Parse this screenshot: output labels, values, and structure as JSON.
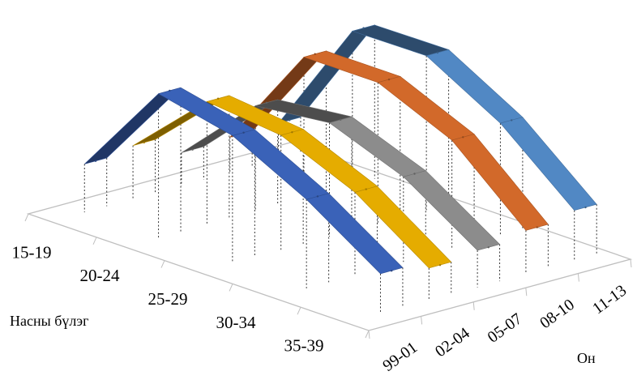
{
  "chart_data": {
    "type": "3d-line",
    "title": "",
    "xlabel": "Насны бүлэг",
    "ylabel": "Он",
    "categories": [
      "15-19",
      "20-24",
      "25-29",
      "30-34",
      "35-39"
    ],
    "depth_categories": [
      "99-01",
      "02-04",
      "05-07",
      "08-10",
      "11-13"
    ],
    "series": [
      {
        "label": "99-01",
        "color": "#3a62b8",
        "values": [
          64,
          191,
          169,
          118,
          53
        ]
      },
      {
        "label": "02-04",
        "color": "#e5ac00",
        "values": [
          71,
          163,
          152,
          110,
          43
        ]
      },
      {
        "label": "05-07",
        "color": "#8c8c8c",
        "values": [
          44,
          140,
          151,
          113,
          49
        ]
      },
      {
        "label": "08-10",
        "color": "#d2692a",
        "values": [
          47,
          187,
          187,
          144,
          58
        ]
      },
      {
        "label": "11-13",
        "color": "#5188c4",
        "values": [
          48,
          204,
          205,
          149,
          67
        ]
      }
    ],
    "grid": false,
    "legend": "none"
  }
}
